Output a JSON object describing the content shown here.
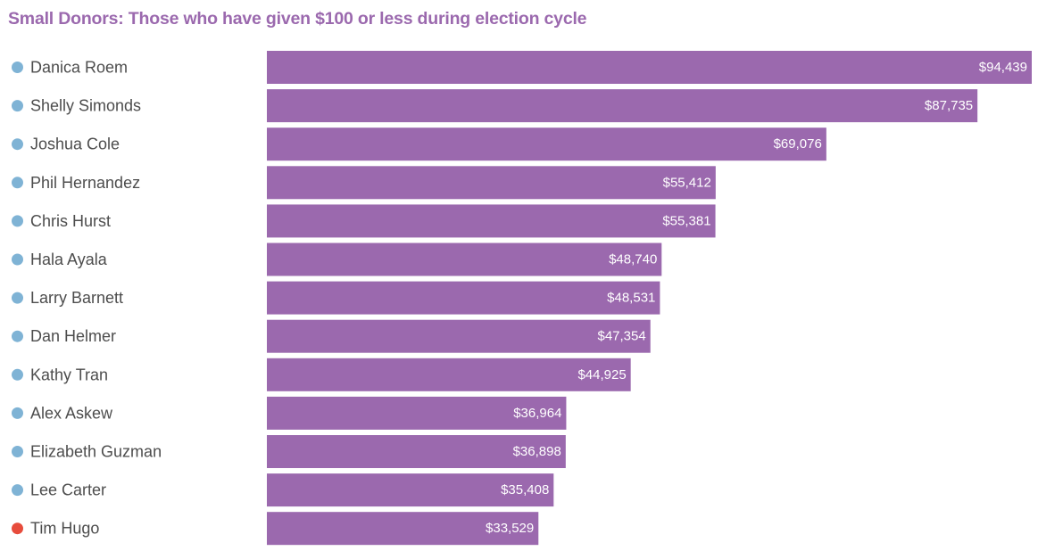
{
  "chart_data": {
    "type": "bar",
    "orientation": "horizontal",
    "title": "Small Donors: Those who have given $100 or less during election cycle",
    "categories": [
      "Danica Roem",
      "Shelly Simonds",
      "Joshua Cole",
      "Phil Hernandez",
      "Chris Hurst",
      "Hala Ayala",
      "Larry Barnett",
      "Dan Helmer",
      "Kathy Tran",
      "Alex Askew",
      "Elizabeth Guzman",
      "Lee Carter",
      "Tim Hugo"
    ],
    "values": [
      94439,
      87735,
      69076,
      55412,
      55381,
      48740,
      48531,
      47354,
      44925,
      36964,
      36898,
      35408,
      33529
    ],
    "value_labels": [
      "$94,439",
      "$87,735",
      "$69,076",
      "$55,412",
      "$55,381",
      "$48,740",
      "$48,531",
      "$47,354",
      "$44,925",
      "$36,964",
      "$36,898",
      "$35,408",
      "$33,529"
    ],
    "dot_colors": [
      "#7fb3d5",
      "#7fb3d5",
      "#7fb3d5",
      "#7fb3d5",
      "#7fb3d5",
      "#7fb3d5",
      "#7fb3d5",
      "#7fb3d5",
      "#7fb3d5",
      "#7fb3d5",
      "#7fb3d5",
      "#7fb3d5",
      "#e74c3c"
    ],
    "bar_color": "#9b69ae",
    "xlim": [
      0,
      94439
    ],
    "grid": false,
    "legend": "none"
  }
}
